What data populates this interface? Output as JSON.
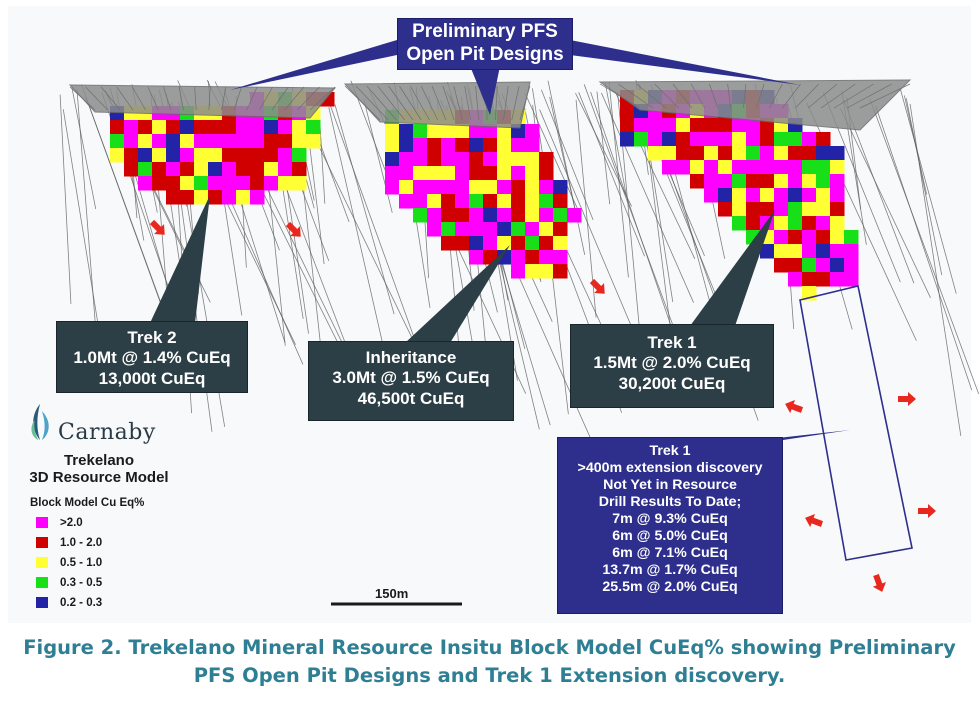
{
  "callouts": {
    "pfs": [
      "Preliminary PFS",
      "Open Pit Designs"
    ],
    "trek2": [
      "Trek 2",
      "1.0Mt @ 1.4% CuEq",
      "13,000t CuEq"
    ],
    "inheritance": [
      "Inheritance",
      "3.0Mt @ 1.5% CuEq",
      "46,500t CuEq"
    ],
    "trek1": [
      "Trek 1",
      "1.5Mt @ 2.0% CuEq",
      "30,200t CuEq"
    ],
    "trek1_extension": [
      "Trek 1",
      ">400m extension discovery",
      "Not Yet in Resource",
      "Drill Results To Date;",
      "7m @ 9.3% CuEq",
      "6m @ 5.0% CuEq",
      "6m @ 7.1% CuEq",
      "13.7m @ 1.7% CuEq",
      "25.5m @ 2.0% CuEq"
    ]
  },
  "logo": {
    "name": "Carnaby",
    "icon": "carnaby-leaf-logo"
  },
  "model_title": [
    "Trekelano",
    "3D Resource Model"
  ],
  "legend": {
    "title": "Block Model Cu Eq%",
    "items": [
      {
        "label": ">2.0",
        "color": "#ff00ff"
      },
      {
        "label": "1.0 - 2.0",
        "color": "#d10000"
      },
      {
        "label": "0.5 - 1.0",
        "color": "#ffff33"
      },
      {
        "label": "0.3 - 0.5",
        "color": "#18e018"
      },
      {
        "label": "0.2 - 0.3",
        "color": "#2323a8"
      }
    ]
  },
  "scale_bar": "150m",
  "caption": [
    "Figure 2. Trekelano Mineral Resource Insitu Block Model CuEq% showing Preliminary",
    "PFS Open Pit Designs and Trek 1 Extension discovery."
  ],
  "colors": {
    "callout_dark": "#2c3e46",
    "callout_blue": "#2e2f8c",
    "caption": "#2f7f94",
    "arrow": "#e8281e",
    "pit": "#8c8c8c"
  }
}
